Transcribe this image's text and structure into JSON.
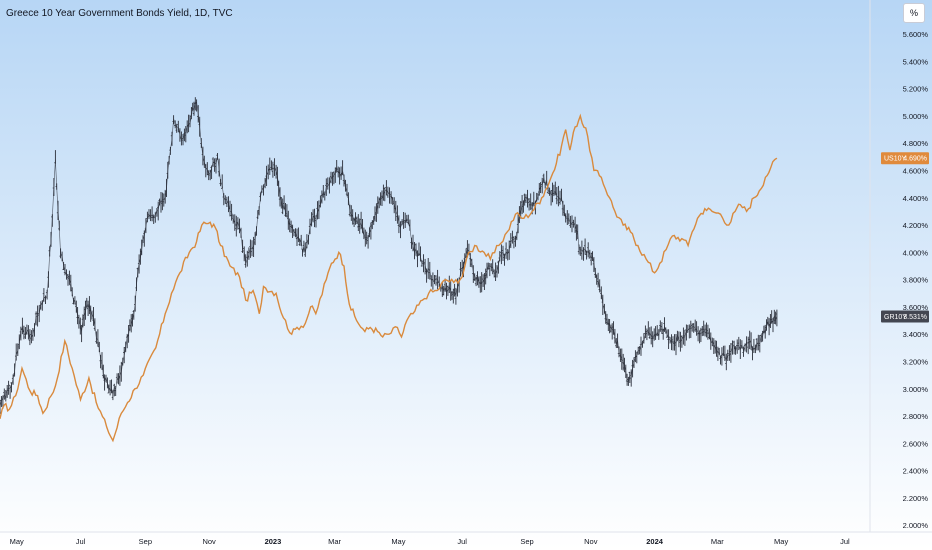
{
  "header": {
    "title": "Greece 10 Year Government Bonds Yield, 1D, TVC",
    "unit_button": "%"
  },
  "colors": {
    "background_top": "#b7d6f5",
    "background_bottom": "#ffffff",
    "greece_series": "#2a2e39",
    "us_series": "#d98a3d",
    "us_badge": "#e08a3c",
    "gr_badge": "#434651"
  },
  "chart_data": {
    "type": "line",
    "title": "Greece 10 Year Government Bonds Yield, 1D, TVC",
    "x_axis": {
      "range": [
        "2022-04-15",
        "2024-07-25"
      ],
      "ticks": [
        {
          "date": "2022-05-01",
          "label": "May",
          "bold": false
        },
        {
          "date": "2022-07-01",
          "label": "Jul",
          "bold": false
        },
        {
          "date": "2022-09-01",
          "label": "Sep",
          "bold": false
        },
        {
          "date": "2022-11-01",
          "label": "Nov",
          "bold": false
        },
        {
          "date": "2023-01-01",
          "label": "2023",
          "bold": true
        },
        {
          "date": "2023-03-01",
          "label": "Mar",
          "bold": false
        },
        {
          "date": "2023-05-01",
          "label": "May",
          "bold": false
        },
        {
          "date": "2023-07-01",
          "label": "Jul",
          "bold": false
        },
        {
          "date": "2023-09-01",
          "label": "Sep",
          "bold": false
        },
        {
          "date": "2023-11-01",
          "label": "Nov",
          "bold": false
        },
        {
          "date": "2024-01-01",
          "label": "2024",
          "bold": true
        },
        {
          "date": "2024-03-01",
          "label": "Mar",
          "bold": false
        },
        {
          "date": "2024-05-01",
          "label": "May",
          "bold": false
        },
        {
          "date": "2024-07-01",
          "label": "Jul",
          "bold": false
        }
      ]
    },
    "y_axis": {
      "range": [
        1.95,
        5.85
      ],
      "ticks": [
        "2.000%",
        "2.200%",
        "2.400%",
        "2.600%",
        "2.800%",
        "3.000%",
        "3.200%",
        "3.400%",
        "3.600%",
        "3.800%",
        "4.000%",
        "4.200%",
        "4.400%",
        "4.600%",
        "4.800%",
        "5.000%",
        "5.200%",
        "5.400%",
        "5.600%"
      ],
      "tick_values": [
        2.0,
        2.2,
        2.4,
        2.6,
        2.8,
        3.0,
        3.2,
        3.4,
        3.6,
        3.8,
        4.0,
        4.2,
        4.4,
        4.6,
        4.8,
        5.0,
        5.2,
        5.4,
        5.6
      ]
    },
    "grid": false,
    "series": [
      {
        "name": "GR10Y",
        "style": "ohlc-bars",
        "last_value_label": "3.531%",
        "points": [
          [
            "2022-04-15",
            2.87
          ],
          [
            "2022-04-26",
            3.02
          ],
          [
            "2022-05-05",
            3.43
          ],
          [
            "2022-05-15",
            3.38
          ],
          [
            "2022-05-24",
            3.62
          ],
          [
            "2022-05-30",
            3.68
          ],
          [
            "2022-06-04",
            4.25
          ],
          [
            "2022-06-07",
            4.68
          ],
          [
            "2022-06-12",
            3.98
          ],
          [
            "2022-06-19",
            3.82
          ],
          [
            "2022-06-27",
            3.6
          ],
          [
            "2022-07-02",
            3.42
          ],
          [
            "2022-07-07",
            3.62
          ],
          [
            "2022-07-12",
            3.55
          ],
          [
            "2022-07-19",
            3.3
          ],
          [
            "2022-07-24",
            3.06
          ],
          [
            "2022-08-01",
            2.96
          ],
          [
            "2022-08-09",
            3.12
          ],
          [
            "2022-08-16",
            3.4
          ],
          [
            "2022-08-21",
            3.55
          ],
          [
            "2022-08-26",
            3.92
          ],
          [
            "2022-08-31",
            4.12
          ],
          [
            "2022-09-03",
            4.25
          ],
          [
            "2022-09-12",
            4.3
          ],
          [
            "2022-09-20",
            4.4
          ],
          [
            "2022-09-25",
            4.75
          ],
          [
            "2022-09-28",
            4.98
          ],
          [
            "2022-10-07",
            4.82
          ],
          [
            "2022-10-15",
            5.0
          ],
          [
            "2022-10-20",
            5.1
          ],
          [
            "2022-10-26",
            4.7
          ],
          [
            "2022-11-02",
            4.58
          ],
          [
            "2022-11-09",
            4.7
          ],
          [
            "2022-11-15",
            4.4
          ],
          [
            "2022-11-24",
            4.25
          ],
          [
            "2022-11-30",
            4.18
          ],
          [
            "2022-12-06",
            3.92
          ],
          [
            "2022-12-15",
            4.1
          ],
          [
            "2022-12-20",
            4.4
          ],
          [
            "2022-12-29",
            4.62
          ],
          [
            "2023-01-04",
            4.6
          ],
          [
            "2023-01-09",
            4.38
          ],
          [
            "2023-01-17",
            4.2
          ],
          [
            "2023-01-24",
            4.1
          ],
          [
            "2023-02-01",
            4.0
          ],
          [
            "2023-02-07",
            4.22
          ],
          [
            "2023-02-14",
            4.32
          ],
          [
            "2023-02-21",
            4.48
          ],
          [
            "2023-02-27",
            4.55
          ],
          [
            "2023-03-03",
            4.62
          ],
          [
            "2023-03-10",
            4.55
          ],
          [
            "2023-03-17",
            4.28
          ],
          [
            "2023-03-25",
            4.2
          ],
          [
            "2023-04-02",
            4.1
          ],
          [
            "2023-04-10",
            4.3
          ],
          [
            "2023-04-18",
            4.45
          ],
          [
            "2023-04-24",
            4.42
          ],
          [
            "2023-05-03",
            4.18
          ],
          [
            "2023-05-09",
            4.25
          ],
          [
            "2023-05-15",
            4.05
          ],
          [
            "2023-05-25",
            3.92
          ],
          [
            "2023-06-03",
            3.8
          ],
          [
            "2023-06-12",
            3.75
          ],
          [
            "2023-06-20",
            3.72
          ],
          [
            "2023-06-25",
            3.68
          ],
          [
            "2023-07-01",
            3.88
          ],
          [
            "2023-07-06",
            4.02
          ],
          [
            "2023-07-13",
            3.82
          ],
          [
            "2023-07-21",
            3.78
          ],
          [
            "2023-07-26",
            3.9
          ],
          [
            "2023-08-02",
            3.85
          ],
          [
            "2023-08-06",
            3.96
          ],
          [
            "2023-08-15",
            4.02
          ],
          [
            "2023-08-21",
            4.1
          ],
          [
            "2023-08-26",
            4.3
          ],
          [
            "2023-08-31",
            4.4
          ],
          [
            "2023-09-09",
            4.35
          ],
          [
            "2023-09-14",
            4.48
          ],
          [
            "2023-09-17",
            4.55
          ],
          [
            "2023-09-24",
            4.42
          ],
          [
            "2023-09-28",
            4.45
          ],
          [
            "2023-10-04",
            4.4
          ],
          [
            "2023-10-08",
            4.25
          ],
          [
            "2023-10-17",
            4.2
          ],
          [
            "2023-10-22",
            4.02
          ],
          [
            "2023-10-31",
            3.98
          ],
          [
            "2023-11-04",
            3.92
          ],
          [
            "2023-11-08",
            3.8
          ],
          [
            "2023-11-14",
            3.58
          ],
          [
            "2023-11-19",
            3.46
          ],
          [
            "2023-11-24",
            3.38
          ],
          [
            "2023-12-02",
            3.2
          ],
          [
            "2023-12-07",
            3.05
          ],
          [
            "2023-12-11",
            3.15
          ],
          [
            "2023-12-19",
            3.32
          ],
          [
            "2023-12-26",
            3.42
          ],
          [
            "2024-01-02",
            3.38
          ],
          [
            "2024-01-08",
            3.45
          ],
          [
            "2024-01-13",
            3.4
          ],
          [
            "2024-01-20",
            3.35
          ],
          [
            "2024-01-30",
            3.38
          ],
          [
            "2024-02-06",
            3.45
          ],
          [
            "2024-02-13",
            3.4
          ],
          [
            "2024-02-21",
            3.42
          ],
          [
            "2024-02-28",
            3.3
          ],
          [
            "2024-03-04",
            3.22
          ],
          [
            "2024-03-11",
            3.25
          ],
          [
            "2024-03-20",
            3.32
          ],
          [
            "2024-03-26",
            3.28
          ],
          [
            "2024-04-01",
            3.35
          ],
          [
            "2024-04-05",
            3.3
          ],
          [
            "2024-04-12",
            3.38
          ],
          [
            "2024-04-17",
            3.45
          ],
          [
            "2024-04-22",
            3.5
          ],
          [
            "2024-04-27",
            3.53
          ]
        ]
      },
      {
        "name": "US10Y",
        "style": "line",
        "last_value_label": "4.690%",
        "points": [
          [
            "2022-04-15",
            2.78
          ],
          [
            "2022-04-19",
            2.88
          ],
          [
            "2022-04-24",
            2.85
          ],
          [
            "2022-04-30",
            2.95
          ],
          [
            "2022-05-06",
            3.15
          ],
          [
            "2022-05-14",
            2.98
          ],
          [
            "2022-05-21",
            2.95
          ],
          [
            "2022-05-26",
            2.82
          ],
          [
            "2022-06-03",
            2.95
          ],
          [
            "2022-06-07",
            3.02
          ],
          [
            "2022-06-16",
            3.35
          ],
          [
            "2022-06-23",
            3.15
          ],
          [
            "2022-07-01",
            2.92
          ],
          [
            "2022-07-09",
            3.08
          ],
          [
            "2022-07-16",
            2.9
          ],
          [
            "2022-07-26",
            2.72
          ],
          [
            "2022-08-01",
            2.62
          ],
          [
            "2022-08-09",
            2.82
          ],
          [
            "2022-08-15",
            2.9
          ],
          [
            "2022-08-22",
            3.0
          ],
          [
            "2022-08-30",
            3.1
          ],
          [
            "2022-09-11",
            3.3
          ],
          [
            "2022-09-20",
            3.55
          ],
          [
            "2022-09-26",
            3.7
          ],
          [
            "2022-10-04",
            3.85
          ],
          [
            "2022-10-13",
            4.0
          ],
          [
            "2022-10-20",
            4.08
          ],
          [
            "2022-10-25",
            4.2
          ],
          [
            "2022-11-02",
            4.22
          ],
          [
            "2022-11-07",
            4.18
          ],
          [
            "2022-11-12",
            4.05
          ],
          [
            "2022-11-21",
            3.9
          ],
          [
            "2022-11-30",
            3.82
          ],
          [
            "2022-12-06",
            3.65
          ],
          [
            "2022-12-13",
            3.72
          ],
          [
            "2022-12-19",
            3.55
          ],
          [
            "2022-12-23",
            3.75
          ],
          [
            "2023-01-04",
            3.7
          ],
          [
            "2023-01-11",
            3.52
          ],
          [
            "2023-01-19",
            3.4
          ],
          [
            "2023-01-24",
            3.45
          ],
          [
            "2023-02-01",
            3.48
          ],
          [
            "2023-02-06",
            3.6
          ],
          [
            "2023-02-11",
            3.55
          ],
          [
            "2023-02-21",
            3.8
          ],
          [
            "2023-02-26",
            3.92
          ],
          [
            "2023-03-05",
            4.0
          ],
          [
            "2023-03-10",
            3.9
          ],
          [
            "2023-03-15",
            3.62
          ],
          [
            "2023-03-22",
            3.5
          ],
          [
            "2023-03-30",
            3.42
          ],
          [
            "2023-04-04",
            3.45
          ],
          [
            "2023-04-11",
            3.42
          ],
          [
            "2023-04-16",
            3.38
          ],
          [
            "2023-04-22",
            3.4
          ],
          [
            "2023-04-30",
            3.45
          ],
          [
            "2023-05-04",
            3.38
          ],
          [
            "2023-05-09",
            3.5
          ],
          [
            "2023-05-15",
            3.55
          ],
          [
            "2023-05-24",
            3.65
          ],
          [
            "2023-05-30",
            3.7
          ],
          [
            "2023-06-07",
            3.72
          ],
          [
            "2023-06-15",
            3.8
          ],
          [
            "2023-06-23",
            3.78
          ],
          [
            "2023-07-01",
            3.82
          ],
          [
            "2023-07-05",
            3.95
          ],
          [
            "2023-07-13",
            4.05
          ],
          [
            "2023-07-22",
            4.0
          ],
          [
            "2023-07-28",
            3.95
          ],
          [
            "2023-08-05",
            4.05
          ],
          [
            "2023-08-13",
            4.15
          ],
          [
            "2023-08-21",
            4.28
          ],
          [
            "2023-08-29",
            4.25
          ],
          [
            "2023-09-06",
            4.3
          ],
          [
            "2023-09-15",
            4.4
          ],
          [
            "2023-09-24",
            4.55
          ],
          [
            "2023-09-29",
            4.65
          ],
          [
            "2023-10-04",
            4.78
          ],
          [
            "2023-10-08",
            4.9
          ],
          [
            "2023-10-12",
            4.75
          ],
          [
            "2023-10-17",
            4.92
          ],
          [
            "2023-10-22",
            5.0
          ],
          [
            "2023-10-29",
            4.85
          ],
          [
            "2023-11-04",
            4.6
          ],
          [
            "2023-11-11",
            4.55
          ],
          [
            "2023-11-19",
            4.4
          ],
          [
            "2023-11-24",
            4.3
          ],
          [
            "2023-12-02",
            4.2
          ],
          [
            "2023-12-09",
            4.15
          ],
          [
            "2023-12-16",
            4.05
          ],
          [
            "2023-12-24",
            3.95
          ],
          [
            "2024-01-01",
            3.85
          ],
          [
            "2024-01-06",
            3.92
          ],
          [
            "2024-01-12",
            4.02
          ],
          [
            "2024-01-18",
            4.12
          ],
          [
            "2024-01-27",
            4.1
          ],
          [
            "2024-02-02",
            4.05
          ],
          [
            "2024-02-06",
            4.15
          ],
          [
            "2024-02-11",
            4.25
          ],
          [
            "2024-02-18",
            4.32
          ],
          [
            "2024-02-25",
            4.3
          ],
          [
            "2024-03-04",
            4.28
          ],
          [
            "2024-03-12",
            4.2
          ],
          [
            "2024-03-18",
            4.3
          ],
          [
            "2024-03-23",
            4.35
          ],
          [
            "2024-03-29",
            4.3
          ],
          [
            "2024-04-05",
            4.4
          ],
          [
            "2024-04-10",
            4.45
          ],
          [
            "2024-04-16",
            4.55
          ],
          [
            "2024-04-21",
            4.62
          ],
          [
            "2024-04-27",
            4.69
          ]
        ]
      }
    ]
  }
}
